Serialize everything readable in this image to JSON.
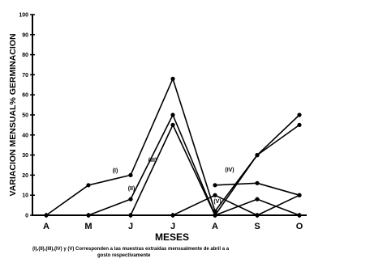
{
  "chart_data": {
    "type": "line",
    "ylabel": "VARIACION MENSUAL% GERMINACION",
    "xlabel": "MESES",
    "categories": [
      "A",
      "M",
      "J",
      "J",
      "A",
      "S",
      "O"
    ],
    "yticks": [
      0,
      10,
      20,
      30,
      40,
      50,
      60,
      70,
      80,
      90,
      100
    ],
    "ylim": [
      0,
      100
    ],
    "grid": false,
    "series": [
      {
        "name": "(I)",
        "values": [
          0,
          15,
          20,
          68,
          2,
          30,
          50
        ]
      },
      {
        "name": "(II)",
        "values": [
          null,
          0,
          8,
          50,
          0,
          8,
          0
        ]
      },
      {
        "name": "(III)",
        "values": [
          null,
          null,
          0,
          45,
          0,
          30,
          45
        ]
      },
      {
        "name": "(IV)",
        "values": [
          null,
          null,
          null,
          0,
          10,
          0,
          10
        ]
      },
      {
        "name": "(V)",
        "values": [
          null,
          null,
          null,
          null,
          15,
          16,
          10
        ]
      }
    ],
    "annotations": [
      "(I)",
      "(II)",
      "(III)",
      "(IV)",
      "(V)"
    ],
    "caption_line1": "(I),(II),(III),(IV) y (V) Corresponden a las muestras extraidas mensualmente de abril a  a",
    "caption_line2": "gosto respectivamente"
  }
}
